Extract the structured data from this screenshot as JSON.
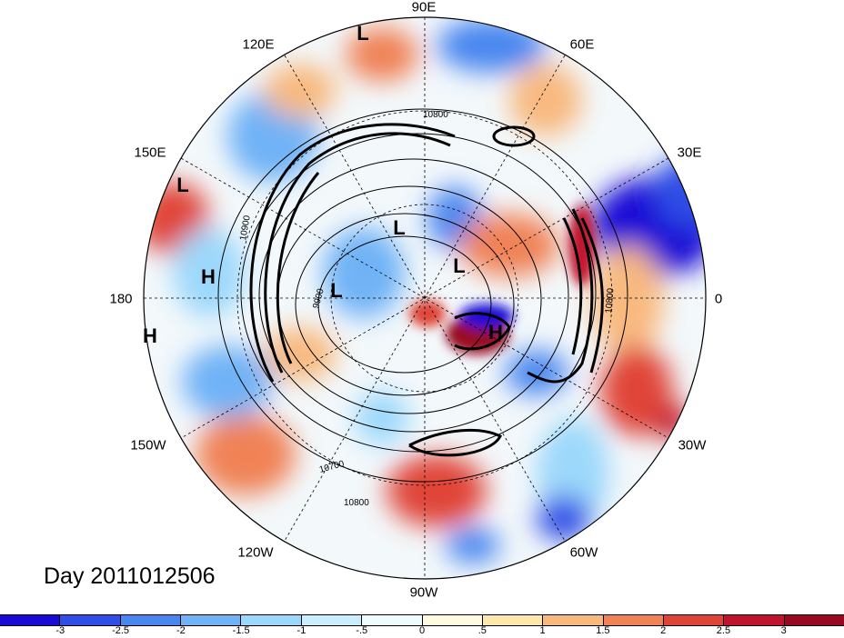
{
  "chart_data": {
    "type": "heatmap",
    "projection": "north polar stereographic",
    "date_label": "Day 2011012506",
    "longitude_labels": [
      "90E",
      "60E",
      "30E",
      "0",
      "30W",
      "60W",
      "90W",
      "120W",
      "150W",
      "180",
      "150E",
      "120E"
    ],
    "contour_labels": [
      "10800",
      "10900",
      "9900",
      "10700",
      "10800",
      "10800"
    ],
    "pressure_centers": [
      "L",
      "L",
      "L",
      "L",
      "L",
      "H",
      "H",
      "H"
    ],
    "colorbar": {
      "tick_labels": [
        "-3",
        "-2.5",
        "-2",
        "-1.5",
        "-1",
        "-.5",
        "0",
        ".5",
        "1",
        "1.5",
        "2",
        "2.5",
        "3"
      ],
      "colors": [
        "#1a0ad6",
        "#2e4ee6",
        "#4a86ef",
        "#6fb2f6",
        "#9cd8fb",
        "#c9eefd",
        "#eefbff",
        "#fffbe0",
        "#fde7aa",
        "#f8b97f",
        "#f08256",
        "#e04438",
        "#c2132e",
        "#9a0720"
      ]
    }
  }
}
